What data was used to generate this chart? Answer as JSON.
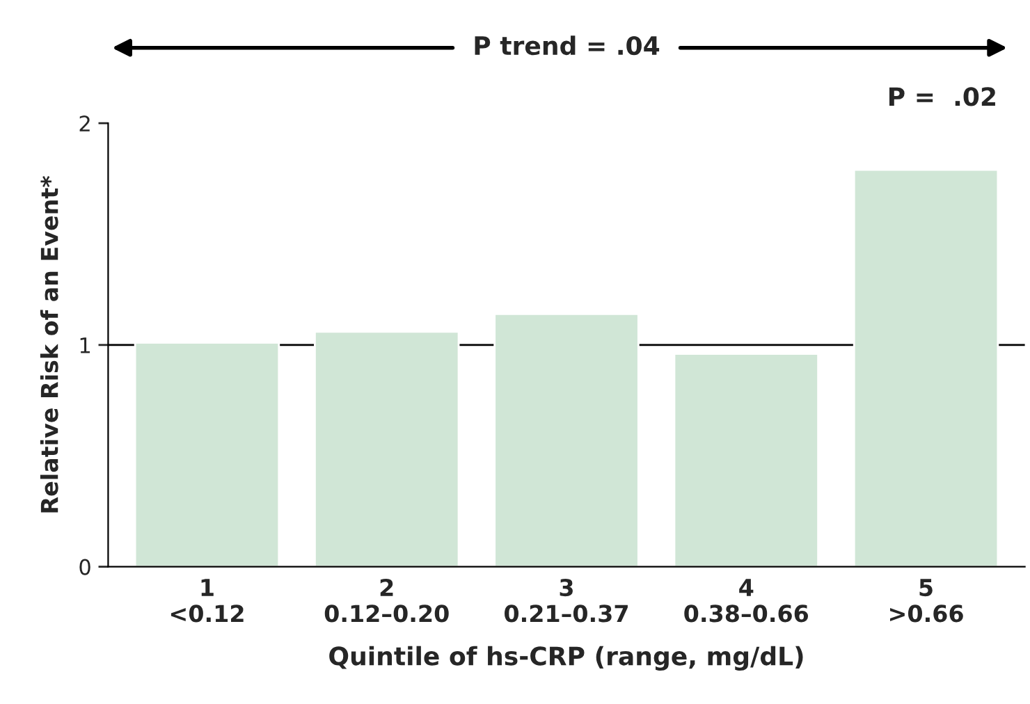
{
  "chart_data": {
    "type": "bar",
    "categories": [
      "1\n<0.12",
      "2\n0.12–0.20",
      "3\n0.21–0.37",
      "4\n0.38–0.66",
      "5\n>0.66"
    ],
    "values": [
      1.01,
      1.06,
      1.14,
      0.96,
      1.79
    ],
    "color": "#d0e6d6",
    "xlabel": "Quintile of hs-CRP (range, mg/dL)",
    "ylabel": "Relative Risk of an Event*",
    "ylim": [
      0,
      2
    ],
    "yticks": [
      0,
      1,
      2
    ],
    "ref_lines": [
      {
        "axis": "y",
        "value": 1,
        "color": "#000000"
      }
    ],
    "annotations": [
      "P trend = .04",
      "P =  .02"
    ],
    "grid": false,
    "legend": false
  }
}
